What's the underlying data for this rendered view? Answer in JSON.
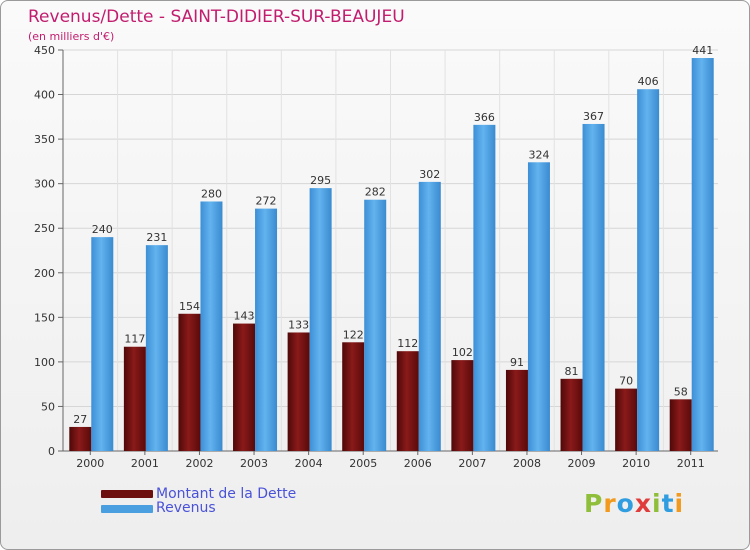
{
  "header": {
    "title": "Revenus/Dette - SAINT-DIDIER-SUR-BEAUJEU",
    "subtitle": "(en milliers d'€)"
  },
  "legend": {
    "items": [
      {
        "label": "Montant de la Dette",
        "color": "#6e0f0f"
      },
      {
        "label": "Revenus",
        "color": "#4a9fe0"
      }
    ]
  },
  "brand": {
    "letters": [
      "P",
      "r",
      "o",
      "x",
      "i",
      "t",
      "i"
    ],
    "colors": [
      "#8fbf3a",
      "#f29a1e",
      "#2f9de0",
      "#e03c3c",
      "#8fbf3a",
      "#2f9de0",
      "#f29a1e"
    ]
  },
  "chart_data": {
    "type": "bar",
    "categories": [
      "2000",
      "2001",
      "2002",
      "2003",
      "2004",
      "2005",
      "2006",
      "2007",
      "2008",
      "2009",
      "2010",
      "2011"
    ],
    "series": [
      {
        "name": "Montant de la Dette",
        "color": "#6e0f0f",
        "values": [
          27,
          117,
          154,
          143,
          133,
          122,
          112,
          102,
          91,
          81,
          70,
          58
        ]
      },
      {
        "name": "Revenus",
        "color": "#4a9fe0",
        "values": [
          240,
          231,
          280,
          272,
          295,
          282,
          302,
          366,
          324,
          367,
          406,
          441
        ]
      }
    ],
    "ylim": [
      0,
      450
    ],
    "yticks": [
      0,
      50,
      100,
      150,
      200,
      250,
      300,
      350,
      400,
      450
    ],
    "grid": true,
    "xlabel": "",
    "ylabel": ""
  }
}
